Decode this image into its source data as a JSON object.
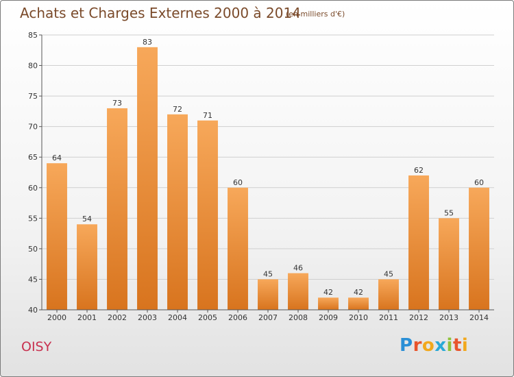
{
  "title": "Achats et Charges Externes 2000 à 2014",
  "unit": "(en milliers d'€)",
  "commune": "OISY",
  "brand": {
    "letters": [
      "P",
      "r",
      "o",
      "x",
      "i",
      "t",
      "i"
    ],
    "colors": [
      "#2a8fd6",
      "#e8542c",
      "#f2a81d",
      "#2aa9d6",
      "#8fc23a",
      "#e8542c",
      "#f2a81d"
    ]
  },
  "chart_data": {
    "type": "bar",
    "title": "Achats et Charges Externes 2000 à 2014",
    "subtitle": "(en milliers d'€)",
    "categories": [
      "2000",
      "2001",
      "2002",
      "2003",
      "2004",
      "2005",
      "2006",
      "2007",
      "2008",
      "2009",
      "2010",
      "2011",
      "2012",
      "2013",
      "2014"
    ],
    "values": [
      64,
      54,
      73,
      83,
      72,
      71,
      60,
      45,
      46,
      42,
      42,
      45,
      62,
      55,
      60
    ],
    "ylim": [
      40,
      85
    ],
    "yticks": [
      40,
      45,
      50,
      55,
      60,
      65,
      70,
      75,
      80,
      85
    ],
    "grid": true,
    "bar_color": "#f29a3c"
  }
}
